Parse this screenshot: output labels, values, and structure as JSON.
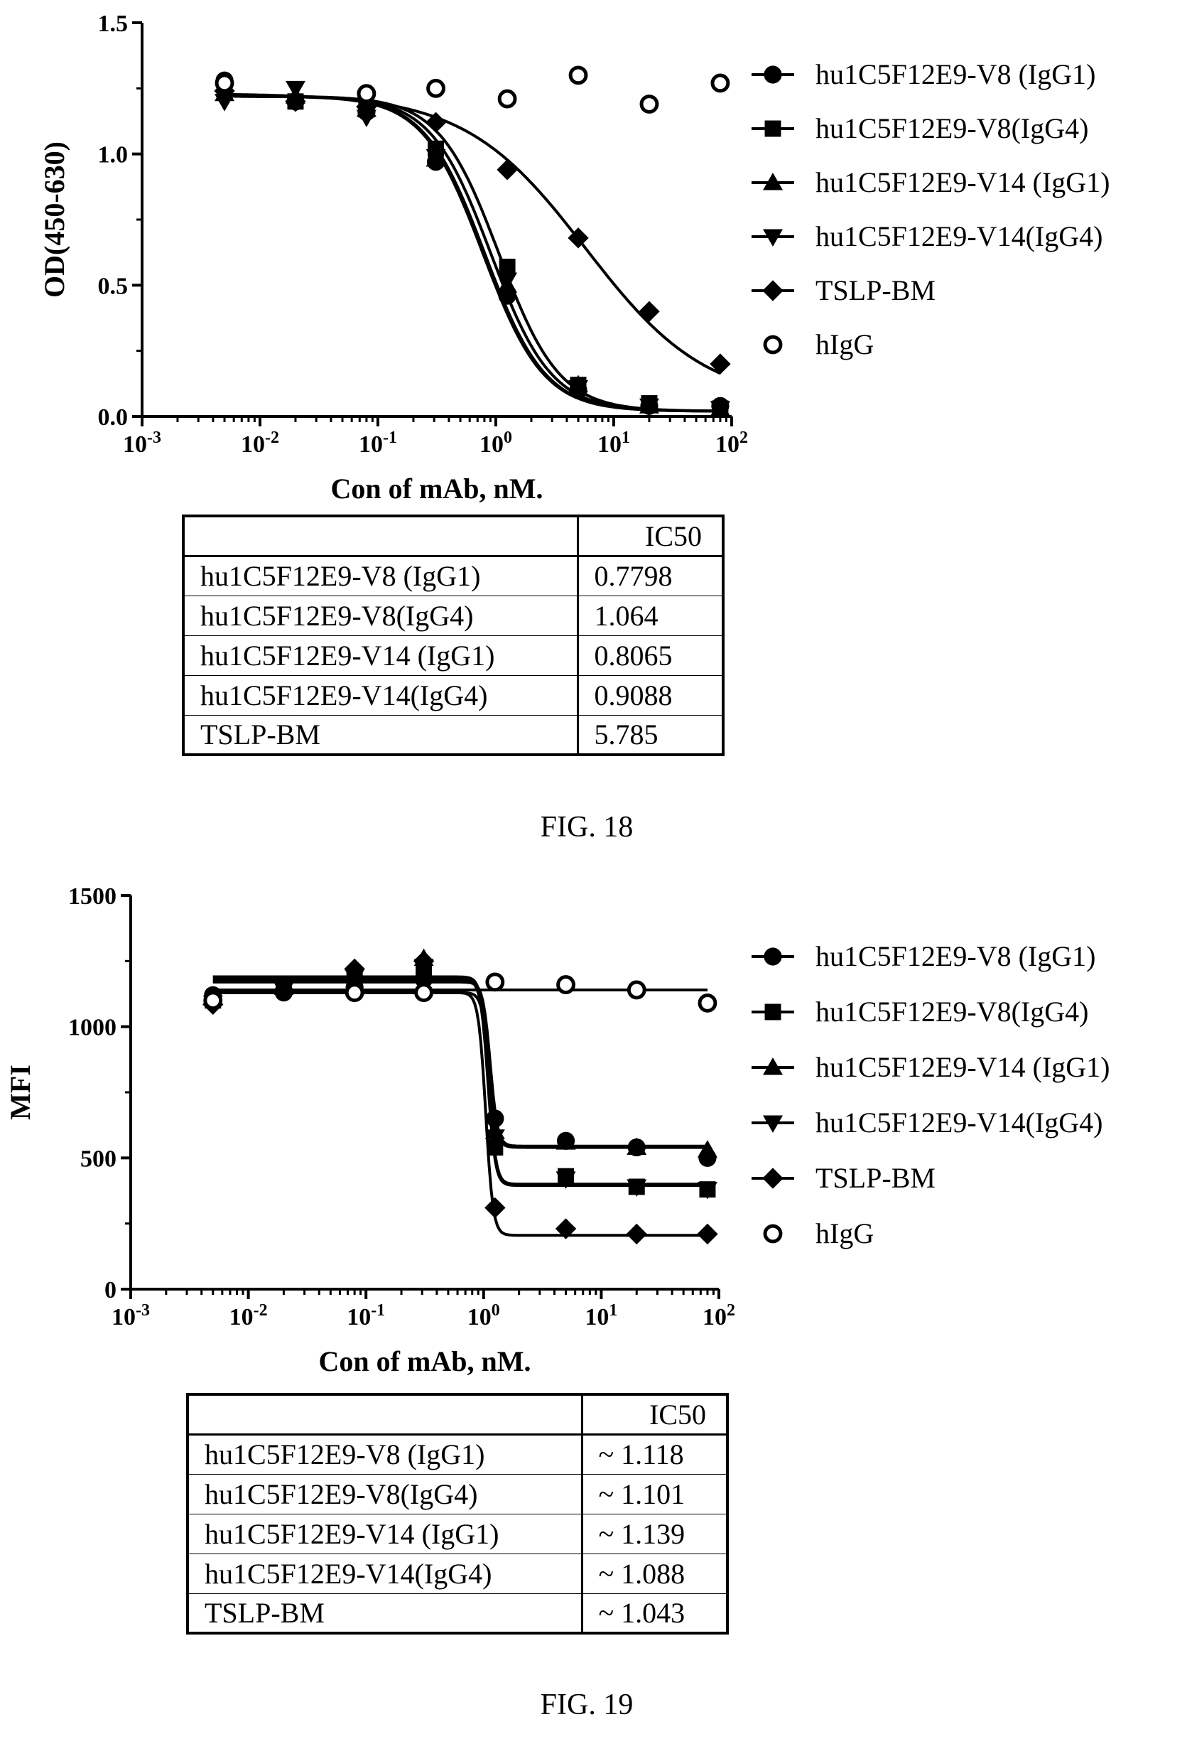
{
  "figures": [
    {
      "caption": "FIG. 18",
      "ic50_header": "IC50",
      "ic50_rows": [
        {
          "name": "hu1C5F12E9-V8 (IgG1)",
          "value": "0.7798"
        },
        {
          "name": "hu1C5F12E9-V8(IgG4)",
          "value": "1.064"
        },
        {
          "name": "hu1C5F12E9-V14 (IgG1)",
          "value": "0.8065"
        },
        {
          "name": "hu1C5F12E9-V14(IgG4)",
          "value": "0.9088"
        },
        {
          "name": "TSLP-BM",
          "value": "5.785"
        }
      ]
    },
    {
      "caption": "FIG. 19",
      "ic50_header": "IC50",
      "ic50_rows": [
        {
          "name": "hu1C5F12E9-V8 (IgG1)",
          "value": "~ 1.118"
        },
        {
          "name": "hu1C5F12E9-V8(IgG4)",
          "value": "~ 1.101"
        },
        {
          "name": "hu1C5F12E9-V14 (IgG1)",
          "value": "~ 1.139"
        },
        {
          "name": "hu1C5F12E9-V14(IgG4)",
          "value": "~ 1.088"
        },
        {
          "name": "TSLP-BM",
          "value": "~ 1.043"
        }
      ]
    }
  ],
  "chart_data": [
    {
      "type": "scatter",
      "title": "",
      "xlabel": "Con of mAb, nM.",
      "ylabel": "OD(450-630)",
      "xscale": "log",
      "xlim": [
        0.001,
        100
      ],
      "ylim": [
        0,
        1.5
      ],
      "yticks": [
        "0.0",
        "0.5",
        "1.0",
        "1.5"
      ],
      "legend": "right",
      "fit": "four-parameter logistic",
      "series": [
        {
          "name": "hu1C5F12E9-V8 (IgG1)",
          "marker": "circle",
          "x": [
            0.005,
            0.02,
            0.08,
            0.31,
            1.25,
            5,
            20,
            80
          ],
          "y": [
            1.28,
            1.2,
            1.16,
            0.97,
            0.46,
            0.1,
            0.04,
            0.04
          ],
          "fit": {
            "top": 1.22,
            "bottom": 0.02,
            "ic50": 0.7798,
            "hill": 1.7
          }
        },
        {
          "name": "hu1C5F12E9-V8(IgG4)",
          "marker": "square",
          "x": [
            0.005,
            0.02,
            0.08,
            0.31,
            1.25,
            5,
            20,
            80
          ],
          "y": [
            1.25,
            1.2,
            1.17,
            1.02,
            0.57,
            0.12,
            0.05,
            0.03
          ],
          "fit": {
            "top": 1.22,
            "bottom": 0.02,
            "ic50": 1.064,
            "hill": 1.7
          }
        },
        {
          "name": "hu1C5F12E9-V14 (IgG1)",
          "marker": "triangle-up",
          "x": [
            0.005,
            0.02,
            0.08,
            0.31,
            1.25,
            5,
            20,
            80
          ],
          "y": [
            1.23,
            1.22,
            1.17,
            0.98,
            0.5,
            0.12,
            0.04,
            0.03
          ],
          "fit": {
            "top": 1.22,
            "bottom": 0.02,
            "ic50": 0.8065,
            "hill": 1.7
          }
        },
        {
          "name": "hu1C5F12E9-V14(IgG4)",
          "marker": "triangle-down",
          "x": [
            0.005,
            0.02,
            0.08,
            0.31,
            1.25,
            5,
            20,
            80
          ],
          "y": [
            1.2,
            1.25,
            1.14,
            0.99,
            0.52,
            0.11,
            0.04,
            0.03
          ],
          "fit": {
            "top": 1.22,
            "bottom": 0.02,
            "ic50": 0.9088,
            "hill": 1.7
          }
        },
        {
          "name": "TSLP-BM",
          "marker": "diamond",
          "x": [
            0.005,
            0.02,
            0.08,
            0.31,
            1.25,
            5,
            20,
            80
          ],
          "y": [
            1.24,
            1.2,
            1.18,
            1.12,
            0.94,
            0.68,
            0.4,
            0.2
          ],
          "fit": {
            "top": 1.23,
            "bottom": 0.05,
            "ic50": 5.785,
            "hill": 0.85
          }
        },
        {
          "name": "hIgG",
          "marker": "circle-open",
          "x": [
            0.005,
            0.08,
            0.31,
            1.25,
            5,
            20,
            80
          ],
          "y": [
            1.27,
            1.23,
            1.25,
            1.21,
            1.3,
            1.19,
            1.27
          ]
        }
      ]
    },
    {
      "type": "scatter",
      "title": "",
      "xlabel": "Con of mAb, nM.",
      "ylabel": "MFI",
      "xscale": "log",
      "xlim": [
        0.001,
        100
      ],
      "ylim": [
        0,
        1500
      ],
      "yticks": [
        "0",
        "500",
        "1000",
        "1500"
      ],
      "legend": "right",
      "fit": "four-parameter logistic",
      "series": [
        {
          "name": "hu1C5F12E9-V8 (IgG1)",
          "marker": "circle",
          "x": [
            0.005,
            0.02,
            0.08,
            0.31,
            1.25,
            5,
            20,
            80
          ],
          "y": [
            1120,
            1130,
            1150,
            1180,
            650,
            565,
            540,
            500
          ],
          "fit": {
            "top": 1130,
            "bottom": 540,
            "ic50": 1.118,
            "hill": 14
          }
        },
        {
          "name": "hu1C5F12E9-V8(IgG4)",
          "marker": "square",
          "x": [
            0.005,
            0.02,
            0.08,
            0.31,
            1.25,
            5,
            20,
            80
          ],
          "y": [
            1100,
            1150,
            1180,
            1220,
            540,
            430,
            390,
            380
          ],
          "fit": {
            "top": 1190,
            "bottom": 400,
            "ic50": 1.101,
            "hill": 14
          }
        },
        {
          "name": "hu1C5F12E9-V14 (IgG1)",
          "marker": "triangle-up",
          "x": [
            0.005,
            0.02,
            0.08,
            0.31,
            1.25,
            5,
            20,
            80
          ],
          "y": [
            1110,
            1150,
            1200,
            1260,
            600,
            560,
            540,
            530
          ],
          "fit": {
            "top": 1170,
            "bottom": 545,
            "ic50": 1.139,
            "hill": 14
          }
        },
        {
          "name": "hu1C5F12E9-V14(IgG4)",
          "marker": "triangle-down",
          "x": [
            0.005,
            0.02,
            0.08,
            0.31,
            1.25,
            5,
            20,
            80
          ],
          "y": [
            1090,
            1140,
            1190,
            1230,
            580,
            420,
            390,
            380
          ],
          "fit": {
            "top": 1180,
            "bottom": 395,
            "ic50": 1.088,
            "hill": 14
          }
        },
        {
          "name": "TSLP-BM",
          "marker": "diamond",
          "x": [
            0.005,
            0.02,
            0.08,
            0.31,
            1.25,
            5,
            20,
            80
          ],
          "y": [
            1085,
            1140,
            1220,
            1250,
            310,
            230,
            210,
            210
          ],
          "fit": {
            "top": 1130,
            "bottom": 205,
            "ic50": 1.043,
            "hill": 14
          }
        },
        {
          "name": "hIgG",
          "marker": "circle-open",
          "x": [
            0.005,
            0.08,
            0.31,
            1.25,
            5,
            20,
            80
          ],
          "y": [
            1100,
            1130,
            1130,
            1170,
            1160,
            1140,
            1090
          ],
          "fit": {
            "flat": 1140
          }
        }
      ]
    }
  ]
}
